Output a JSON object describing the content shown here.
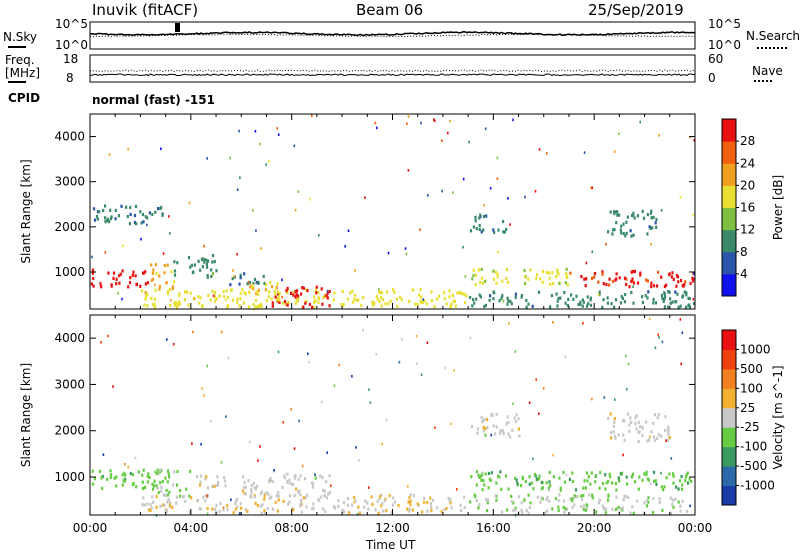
{
  "header": {
    "station": "Inuvik",
    "method": "(fitACF)",
    "beam": "Beam 06",
    "date": "25/Sep/2019"
  },
  "status_panel": {
    "nsky_label": "N.Sky",
    "nsky_tick_top": "10^5",
    "nsky_tick_bottom": "10^0",
    "nsearch_label": "N.Search",
    "nsearch_tick_top": "10^5",
    "nsearch_tick_bottom": "10^0",
    "freq_label_1": "Freq.",
    "freq_label_2": "[MHz]",
    "freq_tick_top": "18",
    "freq_tick_bottom": "8",
    "nave_label": "Nave",
    "nave_tick_top": "60",
    "nave_tick_bottom": "0",
    "cpid_label": "CPID",
    "cpid_value": "normal (fast) -151"
  },
  "chart_data": [
    {
      "type": "heatmap",
      "title": "",
      "xlabel": "Time UT",
      "ylabel": "Slant Range [km]",
      "x_ticks": [
        "00:00",
        "04:00",
        "08:00",
        "12:00",
        "16:00",
        "20:00",
        "00:00"
      ],
      "xlim_hours": [
        0,
        24
      ],
      "y_ticks": [
        1000,
        2000,
        3000,
        4000
      ],
      "ylim": [
        180,
        4500
      ],
      "colorbar_label": "Power [dB]",
      "colorbar_ticks": [
        4,
        8,
        12,
        16,
        20,
        24,
        28
      ],
      "colorbar_colors": [
        "#1010ee",
        "#2a55aa",
        "#3a8a6a",
        "#80c040",
        "#e8e030",
        "#f0a020",
        "#f06010",
        "#e81010"
      ],
      "value_range": [
        0,
        30
      ],
      "bands": [
        {
          "t": [
            0.0,
            2.3
          ],
          "r": [
            700,
            1100
          ],
          "v": 28
        },
        {
          "t": [
            2.3,
            3.3
          ],
          "r": [
            600,
            1200
          ],
          "v": 20
        },
        {
          "t": [
            3.3,
            5.0
          ],
          "r": [
            900,
            1400
          ],
          "v": 10
        },
        {
          "t": [
            5.5,
            7.0
          ],
          "r": [
            700,
            1000
          ],
          "v": 8
        },
        {
          "t": [
            2.0,
            15.0
          ],
          "r": [
            250,
            650
          ],
          "v": 17
        },
        {
          "t": [
            7.2,
            9.5
          ],
          "r": [
            250,
            700
          ],
          "v": 28
        },
        {
          "t": [
            6.3,
            7.5
          ],
          "r": [
            350,
            800
          ],
          "v": 18
        },
        {
          "t": [
            15.0,
            19.0
          ],
          "r": [
            750,
            1100
          ],
          "v": 16
        },
        {
          "t": [
            19.0,
            24.0
          ],
          "r": [
            700,
            1050
          ],
          "v": 27
        },
        {
          "t": [
            15.0,
            24.0
          ],
          "r": [
            250,
            600
          ],
          "v": 9
        },
        {
          "t": [
            0.0,
            3.0
          ],
          "r": [
            2100,
            2500
          ],
          "v": 8
        },
        {
          "t": [
            15.0,
            16.5
          ],
          "r": [
            1900,
            2300
          ],
          "v": 9
        },
        {
          "t": [
            20.5,
            22.5
          ],
          "r": [
            1800,
            2400
          ],
          "v": 9
        }
      ]
    },
    {
      "type": "heatmap",
      "title": "",
      "xlabel": "Time UT",
      "ylabel": "Slant Range [km]",
      "x_ticks": [
        "00:00",
        "04:00",
        "08:00",
        "12:00",
        "16:00",
        "20:00",
        "00:00"
      ],
      "xlim_hours": [
        0,
        24
      ],
      "y_ticks": [
        1000,
        2000,
        3000,
        4000
      ],
      "ylim": [
        180,
        4500
      ],
      "colorbar_label": "Velocity [m s^-1]",
      "colorbar_ticks": [
        1000,
        500,
        100,
        25,
        -25,
        -100,
        -500,
        -1000
      ],
      "colorbar_colors": [
        "#1a3aa8",
        "#2a6aa8",
        "#3a9a60",
        "#66cc44",
        "#c8c8c8",
        "#f0b030",
        "#f08020",
        "#f04010",
        "#e81010"
      ],
      "value_range": [
        -1200,
        1200
      ],
      "bands": [
        {
          "t": [
            0.0,
            2.5
          ],
          "r": [
            750,
            1200
          ],
          "v": -300
        },
        {
          "t": [
            2.5,
            4.0
          ],
          "r": [
            600,
            1200
          ],
          "v": -200
        },
        {
          "t": [
            4.0,
            5.5
          ],
          "r": [
            800,
            1100
          ],
          "v": 60
        },
        {
          "t": [
            6.0,
            9.5
          ],
          "r": [
            600,
            1100
          ],
          "v": 0
        },
        {
          "t": [
            2.0,
            15.0
          ],
          "r": [
            250,
            650
          ],
          "v": 80
        },
        {
          "t": [
            15.0,
            24.0
          ],
          "r": [
            750,
            1150
          ],
          "v": -300
        },
        {
          "t": [
            15.0,
            24.0
          ],
          "r": [
            250,
            650
          ],
          "v": -80
        },
        {
          "t": [
            15.0,
            17.0
          ],
          "r": [
            1900,
            2400
          ],
          "v": 0
        },
        {
          "t": [
            20.5,
            23.0
          ],
          "r": [
            1800,
            2400
          ],
          "v": 10
        }
      ]
    }
  ]
}
